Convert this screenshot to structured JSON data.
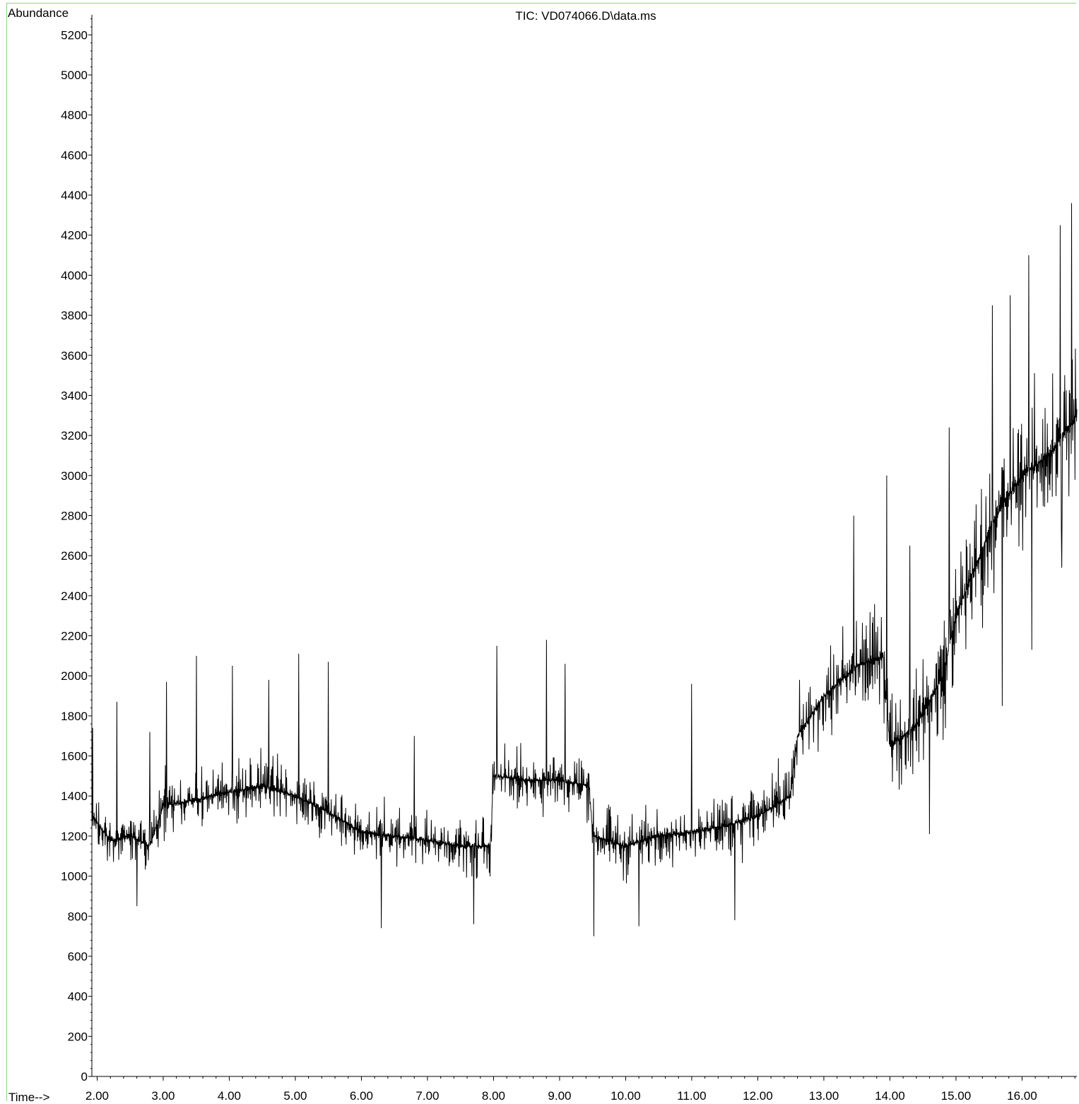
{
  "chart_data": {
    "type": "line",
    "title": "TIC: VD074066.D\\data.ms",
    "ylabel": "Abundance",
    "xlabel": "Time-->",
    "xlim": [
      1.92,
      16.83
    ],
    "ylim": [
      0,
      5300
    ],
    "yticks": [
      0,
      200,
      400,
      600,
      800,
      1000,
      1200,
      1400,
      1600,
      1800,
      2000,
      2200,
      2400,
      2600,
      2800,
      3000,
      3200,
      3400,
      3600,
      3800,
      4000,
      4200,
      4400,
      4600,
      4800,
      5000,
      5200
    ],
    "xticks": [
      "2.00",
      "3.00",
      "4.00",
      "5.00",
      "6.00",
      "7.00",
      "8.00",
      "9.00",
      "10.00",
      "11.00",
      "12.00",
      "13.00",
      "14.00",
      "15.00",
      "16.00"
    ],
    "grid": false,
    "series": [
      {
        "baseline": [
          [
            1.92,
            1300
          ],
          [
            2.2,
            1180
          ],
          [
            2.5,
            1200
          ],
          [
            2.8,
            1150
          ],
          [
            3.0,
            1350
          ],
          [
            3.5,
            1380
          ],
          [
            4.0,
            1420
          ],
          [
            4.5,
            1450
          ],
          [
            5.0,
            1400
          ],
          [
            5.5,
            1320
          ],
          [
            6.0,
            1220
          ],
          [
            6.5,
            1200
          ],
          [
            7.0,
            1180
          ],
          [
            7.5,
            1150
          ],
          [
            7.95,
            1150
          ],
          [
            8.0,
            1500
          ],
          [
            8.5,
            1480
          ],
          [
            9.0,
            1480
          ],
          [
            9.45,
            1450
          ],
          [
            9.5,
            1200
          ],
          [
            10.0,
            1150
          ],
          [
            10.5,
            1200
          ],
          [
            11.0,
            1220
          ],
          [
            11.5,
            1250
          ],
          [
            12.0,
            1300
          ],
          [
            12.5,
            1400
          ],
          [
            12.6,
            1700
          ],
          [
            13.0,
            1900
          ],
          [
            13.5,
            2050
          ],
          [
            13.9,
            2100
          ],
          [
            14.0,
            1650
          ],
          [
            14.4,
            1750
          ],
          [
            14.8,
            2000
          ],
          [
            15.0,
            2300
          ],
          [
            15.3,
            2550
          ],
          [
            15.6,
            2800
          ],
          [
            16.0,
            3000
          ],
          [
            16.4,
            3100
          ],
          [
            16.83,
            3300
          ]
        ],
        "noise_amplitude": [
          [
            1.92,
            230
          ],
          [
            8.0,
            230
          ],
          [
            12.0,
            260
          ],
          [
            13.0,
            330
          ],
          [
            14.0,
            380
          ],
          [
            15.0,
            450
          ],
          [
            16.0,
            550
          ],
          [
            16.83,
            650
          ]
        ],
        "peaks": [
          [
            1.93,
            1740
          ],
          [
            2.3,
            1870
          ],
          [
            2.8,
            1720
          ],
          [
            3.05,
            1970
          ],
          [
            3.5,
            2100
          ],
          [
            4.05,
            2050
          ],
          [
            4.6,
            1980
          ],
          [
            5.05,
            2110
          ],
          [
            5.5,
            2070
          ],
          [
            6.8,
            1700
          ],
          [
            8.05,
            2150
          ],
          [
            8.8,
            2180
          ],
          [
            9.08,
            2060
          ],
          [
            11.0,
            1960
          ],
          [
            13.45,
            2800
          ],
          [
            13.95,
            3000
          ],
          [
            14.3,
            2650
          ],
          [
            14.9,
            3240
          ],
          [
            15.55,
            3850
          ],
          [
            15.82,
            3900
          ],
          [
            16.1,
            4100
          ],
          [
            16.58,
            4250
          ],
          [
            16.75,
            4360
          ]
        ],
        "troughs": [
          [
            2.6,
            850
          ],
          [
            6.3,
            740
          ],
          [
            7.7,
            760
          ],
          [
            9.52,
            700
          ],
          [
            10.2,
            750
          ],
          [
            11.65,
            780
          ],
          [
            14.6,
            1210
          ],
          [
            15.7,
            1850
          ],
          [
            16.15,
            2130
          ],
          [
            16.6,
            2540
          ]
        ]
      }
    ]
  }
}
